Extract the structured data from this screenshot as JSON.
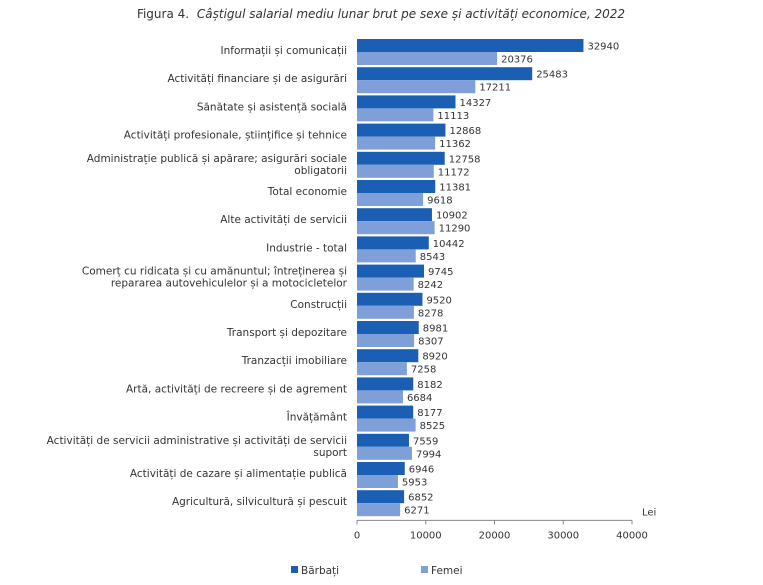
{
  "chart_data": {
    "type": "bar",
    "orientation": "horizontal",
    "title_prefix": "Figura 4.",
    "title": "Câștigul salarial mediu lunar brut pe sexe și activități economice, 2022",
    "xlabel": "Lei",
    "xlim": [
      0,
      40000
    ],
    "xticks": [
      "0",
      "10000",
      "20000",
      "30000",
      "40000"
    ],
    "grid": false,
    "legend_position": "bottom",
    "categories": [
      [
        "Informații și comunicații"
      ],
      [
        "Activități financiare și de asigurări"
      ],
      [
        "Sănătate și asistență socială"
      ],
      [
        "Activități profesionale, științifice și tehnice"
      ],
      [
        "Administrație publică și apărare; asigurări sociale",
        "obligatorii"
      ],
      [
        "Total economie"
      ],
      [
        "Alte activități de servicii"
      ],
      [
        "Industrie - total"
      ],
      [
        "Comerț cu ridicata și cu amănuntul; întreținerea și",
        "repararea autovehiculelor și a motocicletelor"
      ],
      [
        "Construcții"
      ],
      [
        "Transport și depozitare"
      ],
      [
        "Tranzacții imobiliare"
      ],
      [
        "Artă, activități de recreere și de agrement"
      ],
      [
        "Învățământ"
      ],
      [
        "Activități de servicii administrative și activități de servicii",
        "suport"
      ],
      [
        "Activități de cazare și alimentație publică"
      ],
      [
        "Agricultură, silvicultură și pescuit"
      ]
    ],
    "series": [
      {
        "name": "Bărbați",
        "color": "#1a5fb4",
        "values": [
          32940,
          25483,
          14327,
          12868,
          12758,
          11381,
          10902,
          10442,
          9745,
          9520,
          8981,
          8920,
          8182,
          8177,
          7559,
          6946,
          6852
        ]
      },
      {
        "name": "Femei",
        "color": "#7f9fd8",
        "values": [
          20376,
          17211,
          11113,
          11362,
          11172,
          9618,
          11290,
          8543,
          8242,
          8278,
          8307,
          7258,
          6684,
          8525,
          7994,
          5953,
          6271
        ]
      }
    ]
  }
}
